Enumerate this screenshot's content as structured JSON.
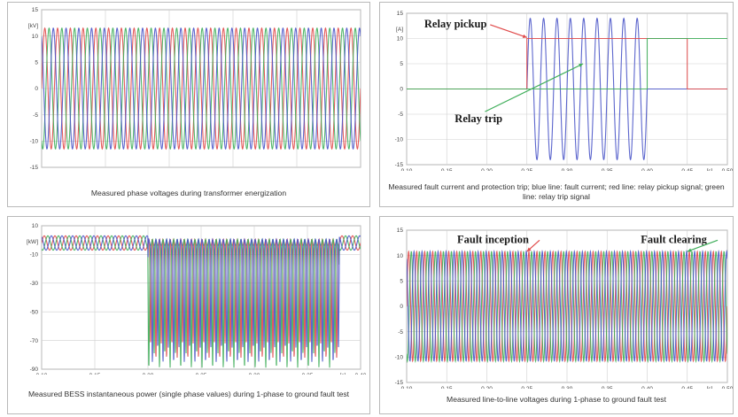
{
  "colors": {
    "red": "#e04a4a",
    "green": "#3fae5a",
    "blue": "#4a55c8",
    "grid": "#cfcfcf",
    "frame": "#808080"
  },
  "chart_data": [
    {
      "type": "line",
      "caption": "Measured phase voltages during transformer energization",
      "ylabel": "[kV]",
      "xlabel_unit": "[s]",
      "xlim": [
        0.2,
        0.45
      ],
      "ylim": [
        -15,
        15
      ],
      "xticks": [
        "0.20",
        "0.25",
        "0.30",
        "0.35",
        "0.40",
        "0.45"
      ],
      "yticks": [
        "15",
        "10",
        "5",
        "0",
        "-5",
        "-10",
        "-15"
      ],
      "series": [
        {
          "color": "red",
          "kind": "sine",
          "amplitude": 11.5,
          "frequency_hz": 100,
          "phase_deg": 0
        },
        {
          "color": "green",
          "kind": "sine",
          "amplitude": 11.5,
          "frequency_hz": 100,
          "phase_deg": 120
        },
        {
          "color": "blue",
          "kind": "sine",
          "amplitude": 11.5,
          "frequency_hz": 100,
          "phase_deg": 240
        }
      ]
    },
    {
      "type": "line",
      "caption": "Measured fault current and protection trip; blue line: fault current; red line: relay pickup signal; green line: relay trip signal",
      "ylabel": "[A]",
      "xlabel_unit": "[s]",
      "xlim": [
        0.1,
        0.5
      ],
      "ylim": [
        -15,
        15
      ],
      "xticks": [
        "0.10",
        "0.15",
        "0.20",
        "0.25",
        "0.30",
        "0.35",
        "0.40",
        "0.45",
        "0.50"
      ],
      "yticks": [
        "15",
        "10",
        "5",
        "0",
        "-5",
        "-10",
        "-15"
      ],
      "annotations": [
        {
          "text": "Relay pickup",
          "x": 0.122,
          "y": 12.2,
          "arrow_to": [
            0.25,
            10.2
          ],
          "color": "red"
        },
        {
          "text": "Relay trip",
          "x": 0.16,
          "y": -6.6,
          "arrow_to": [
            0.32,
            5
          ],
          "color": "green"
        }
      ],
      "series": [
        {
          "color": "blue",
          "kind": "fault_burst",
          "amplitude": 14,
          "frequency_hz": 60,
          "t_start": 0.25,
          "t_end": 0.4
        },
        {
          "color": "red",
          "kind": "step",
          "points": [
            [
              0.1,
              0
            ],
            [
              0.25,
              0
            ],
            [
              0.25,
              10
            ],
            [
              0.45,
              10
            ],
            [
              0.45,
              0
            ],
            [
              0.5,
              0
            ]
          ]
        },
        {
          "color": "green",
          "kind": "step",
          "points": [
            [
              0.1,
              0
            ],
            [
              0.4,
              0
            ],
            [
              0.4,
              10
            ],
            [
              0.5,
              10
            ]
          ]
        }
      ]
    },
    {
      "type": "line",
      "caption": "Measured BESS instantaneous power (single phase values) during 1-phase to ground fault test",
      "ylabel": "[kW]",
      "xlabel_unit": "[s]",
      "xlim": [
        0.1,
        0.4
      ],
      "ylim": [
        -90,
        10
      ],
      "xticks": [
        "0.10",
        "0.15",
        "0.20",
        "0.25",
        "0.30",
        "0.35",
        "0.40"
      ],
      "yticks": [
        "10",
        "-10",
        "-30",
        "-50",
        "-70",
        "-90"
      ],
      "series": [
        {
          "color": "red",
          "kind": "power",
          "ripple": 5,
          "frequency_hz": 100,
          "phase_deg": 0,
          "dip_depth": 75,
          "t_start": 0.2,
          "t_end": 0.38
        },
        {
          "color": "green",
          "kind": "power",
          "ripple": 5,
          "frequency_hz": 100,
          "phase_deg": 120,
          "dip_depth": 82,
          "t_start": 0.2,
          "t_end": 0.38
        },
        {
          "color": "blue",
          "kind": "power",
          "ripple": 5,
          "frequency_hz": 100,
          "phase_deg": 240,
          "dip_depth": 78,
          "t_start": 0.2,
          "t_end": 0.38
        }
      ]
    },
    {
      "type": "line",
      "caption": "Measured line-to-line voltages during 1-phase to ground fault test",
      "ylabel": "",
      "xlabel_unit": "[s]",
      "xlim": [
        0.1,
        0.5
      ],
      "ylim": [
        -15,
        15
      ],
      "xticks": [
        "0.10",
        "0.15",
        "0.20",
        "0.25",
        "0.30",
        "0.35",
        "0.40",
        "0.45",
        "0.50"
      ],
      "yticks": [
        "15",
        "10",
        "5",
        "0",
        "-5",
        "-10",
        "-15"
      ],
      "annotations": [
        {
          "text": "Fault inception",
          "x": 0.163,
          "y": 12.5,
          "arrow_to": [
            0.25,
            10.8
          ],
          "color": "red"
        },
        {
          "text": "Fault clearing",
          "x": 0.392,
          "y": 12.5,
          "arrow_to": [
            0.45,
            10.8
          ],
          "color": "green"
        }
      ],
      "series": [
        {
          "color": "red",
          "kind": "sine",
          "amplitude": 10.8,
          "frequency_hz": 100,
          "phase_deg": 0
        },
        {
          "color": "green",
          "kind": "sine",
          "amplitude": 10.8,
          "frequency_hz": 100,
          "phase_deg": 120
        },
        {
          "color": "blue",
          "kind": "sine",
          "amplitude": 10.8,
          "frequency_hz": 100,
          "phase_deg": 240
        }
      ]
    }
  ]
}
